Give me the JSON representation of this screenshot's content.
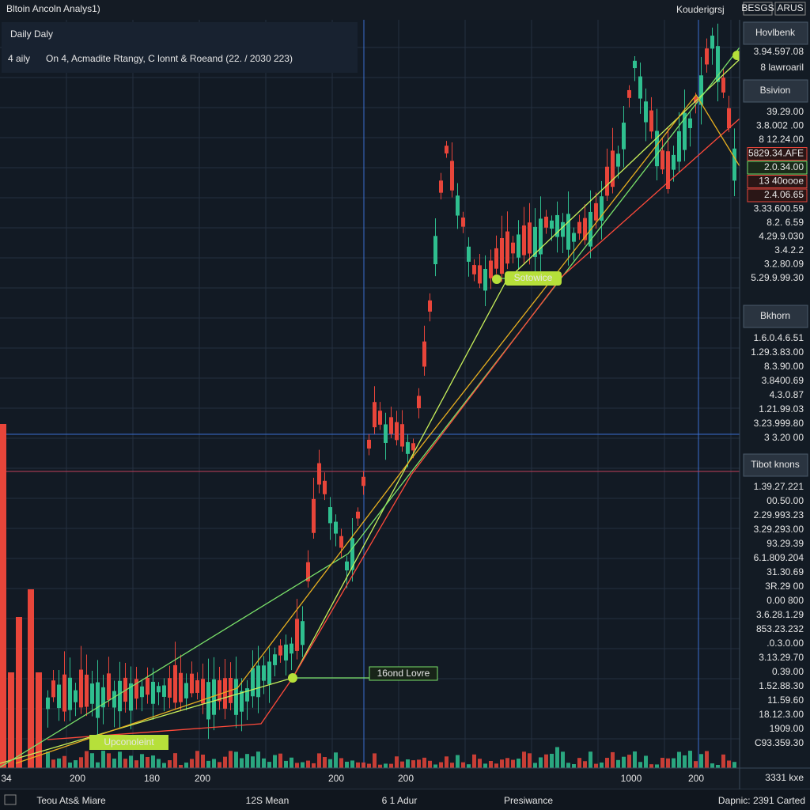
{
  "header": {
    "title": "Bltoin Ancoln Analys1)",
    "user": "Kouderigrsj",
    "badges": [
      "BESGS",
      "ARUS"
    ]
  },
  "chart": {
    "timeframe": "Daily Daly",
    "info_tag": "4 aily",
    "info": "On 4, Acmadite Rtangy, C lonnt & Roeand (22. / 2030 223)",
    "annotations": [
      "Sotowice",
      "16ond Lovre",
      "Upconoleint"
    ],
    "x_labels": [
      "34",
      "200",
      "180",
      "200",
      "200",
      "200",
      "1000",
      "200"
    ]
  },
  "side_panel": {
    "buttons": [
      "Hovlbenk",
      "Bsivion",
      "Bkhorn",
      "Tibot knons"
    ],
    "prices": [
      {
        "text": "3.94.597.08",
        "color": "#c8f05a"
      },
      {
        "text": "8 lawroaril",
        "color": "#7be36a"
      },
      {
        "text": "39.29.00",
        "color": "#e6e6e6"
      },
      {
        "text": "3.8.002 .00",
        "color": "#ff5a4e"
      },
      {
        "text": "8 12.24.00",
        "color": "#ff5a4e"
      },
      {
        "text": "5829.34.AFE",
        "color": "#ff5a4e"
      },
      {
        "text": "2.0.34.00",
        "color": "#7be36a"
      },
      {
        "text": "13 40oooe",
        "color": "#ff5a4e"
      },
      {
        "text": "2.4.06.65",
        "color": "#e6e6e6"
      },
      {
        "text": "3.33.600.59",
        "color": "#7be36a"
      },
      {
        "text": "8.2. 6.59",
        "color": "#7be36a"
      },
      {
        "text": "4.29.9.030",
        "color": "#c8f05a"
      },
      {
        "text": "3.4.2.2",
        "color": "#7be36a"
      },
      {
        "text": "3.2.80.09",
        "color": "#7be36a"
      },
      {
        "text": "5.29.9.99.30",
        "color": "#5ab4f0"
      },
      {
        "text": "1.6.0.4.6.51",
        "color": "#5ab4f0"
      },
      {
        "text": "1.29.3.83.00",
        "color": "#5ab4f0"
      },
      {
        "text": "8.3.90.00",
        "color": "#5ab4f0"
      },
      {
        "text": "3.8400.69",
        "color": "#7be36a"
      },
      {
        "text": "4.3.0.87",
        "color": "#7be36a"
      },
      {
        "text": "1.21.99.03",
        "color": "#5ab4f0"
      },
      {
        "text": "3.23.999.80",
        "color": "#c8f05a"
      },
      {
        "text": "3 3.20 00",
        "color": "#7be36a"
      },
      {
        "text": "1.39.27.221",
        "color": "#7be36a"
      },
      {
        "text": "00.50.00",
        "color": "#e6e6e6"
      },
      {
        "text": "2.29.993.23",
        "color": "#ff5a4e"
      },
      {
        "text": "3.29.293.00",
        "color": "#ff5a4e"
      },
      {
        "text": "93.29.39",
        "color": "#5ab4f0"
      },
      {
        "text": "6.1.809.204",
        "color": "#7be36a"
      },
      {
        "text": "31.30.69",
        "color": "#5ab4f0"
      },
      {
        "text": "3R.29 00",
        "color": "#e8e04a"
      },
      {
        "text": "0.00 800",
        "color": "#ff5a4e"
      },
      {
        "text": "3.6.28.1.29",
        "color": "#5ab4f0"
      },
      {
        "text": "853.23.232",
        "color": "#ff5a4e"
      },
      {
        "text": ".0.3.0.00",
        "color": "#5ab4f0"
      },
      {
        "text": "3.13.29.70",
        "color": "#5ab4f0"
      },
      {
        "text": "0.39.00",
        "color": "#7be36a"
      },
      {
        "text": "1.52.88.30",
        "color": "#ff5a4e"
      },
      {
        "text": "11.59.60",
        "color": "#e6e6e6"
      },
      {
        "text": "18.12.3.00",
        "color": "#5ab4f0"
      },
      {
        "text": "1909.00",
        "color": "#e6e6e6"
      },
      {
        "text": "C93.359.30",
        "color": "#5ab4f0"
      }
    ]
  },
  "footer": {
    "items": [
      {
        "text": "Teou Ats& Miare",
        "color": "#e6e6e6"
      },
      {
        "text": "12S Mean",
        "color": "#ff5a4e"
      },
      {
        "text": "6 1 Adur",
        "color": "#e6e6e6"
      },
      {
        "text": "Presiwance",
        "color": "#4fd6d6"
      },
      {
        "text": "Dapnic: 2391 Carted",
        "color": "#e6e6e6"
      }
    ],
    "corner": "3331 kxe"
  }
}
